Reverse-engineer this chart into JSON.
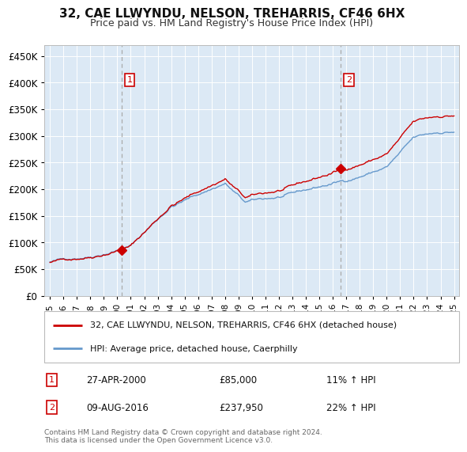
{
  "title": "32, CAE LLWYNDU, NELSON, TREHARRIS, CF46 6HX",
  "subtitle": "Price paid vs. HM Land Registry's House Price Index (HPI)",
  "legend_line1": "32, CAE LLWYNDU, NELSON, TREHARRIS, CF46 6HX (detached house)",
  "legend_line2": "HPI: Average price, detached house, Caerphilly",
  "annotation1_date": "27-APR-2000",
  "annotation1_price": "£85,000",
  "annotation1_hpi": "11% ↑ HPI",
  "annotation2_date": "09-AUG-2016",
  "annotation2_price": "£237,950",
  "annotation2_hpi": "22% ↑ HPI",
  "footer": "Contains HM Land Registry data © Crown copyright and database right 2024.\nThis data is licensed under the Open Government Licence v3.0.",
  "red_color": "#cc0000",
  "blue_color": "#6699cc",
  "bg_color": "#dce9f5",
  "grid_color": "#ffffff",
  "ylim": [
    0,
    470000
  ],
  "yticks": [
    0,
    50000,
    100000,
    150000,
    200000,
    250000,
    300000,
    350000,
    400000,
    450000
  ],
  "sale1_year": 2000.32,
  "sale1_price": 85000,
  "sale2_year": 2016.6,
  "sale2_price": 237950,
  "vline1_year": 2000.32,
  "vline2_year": 2016.6,
  "xmin": 1995,
  "xmax": 2025
}
